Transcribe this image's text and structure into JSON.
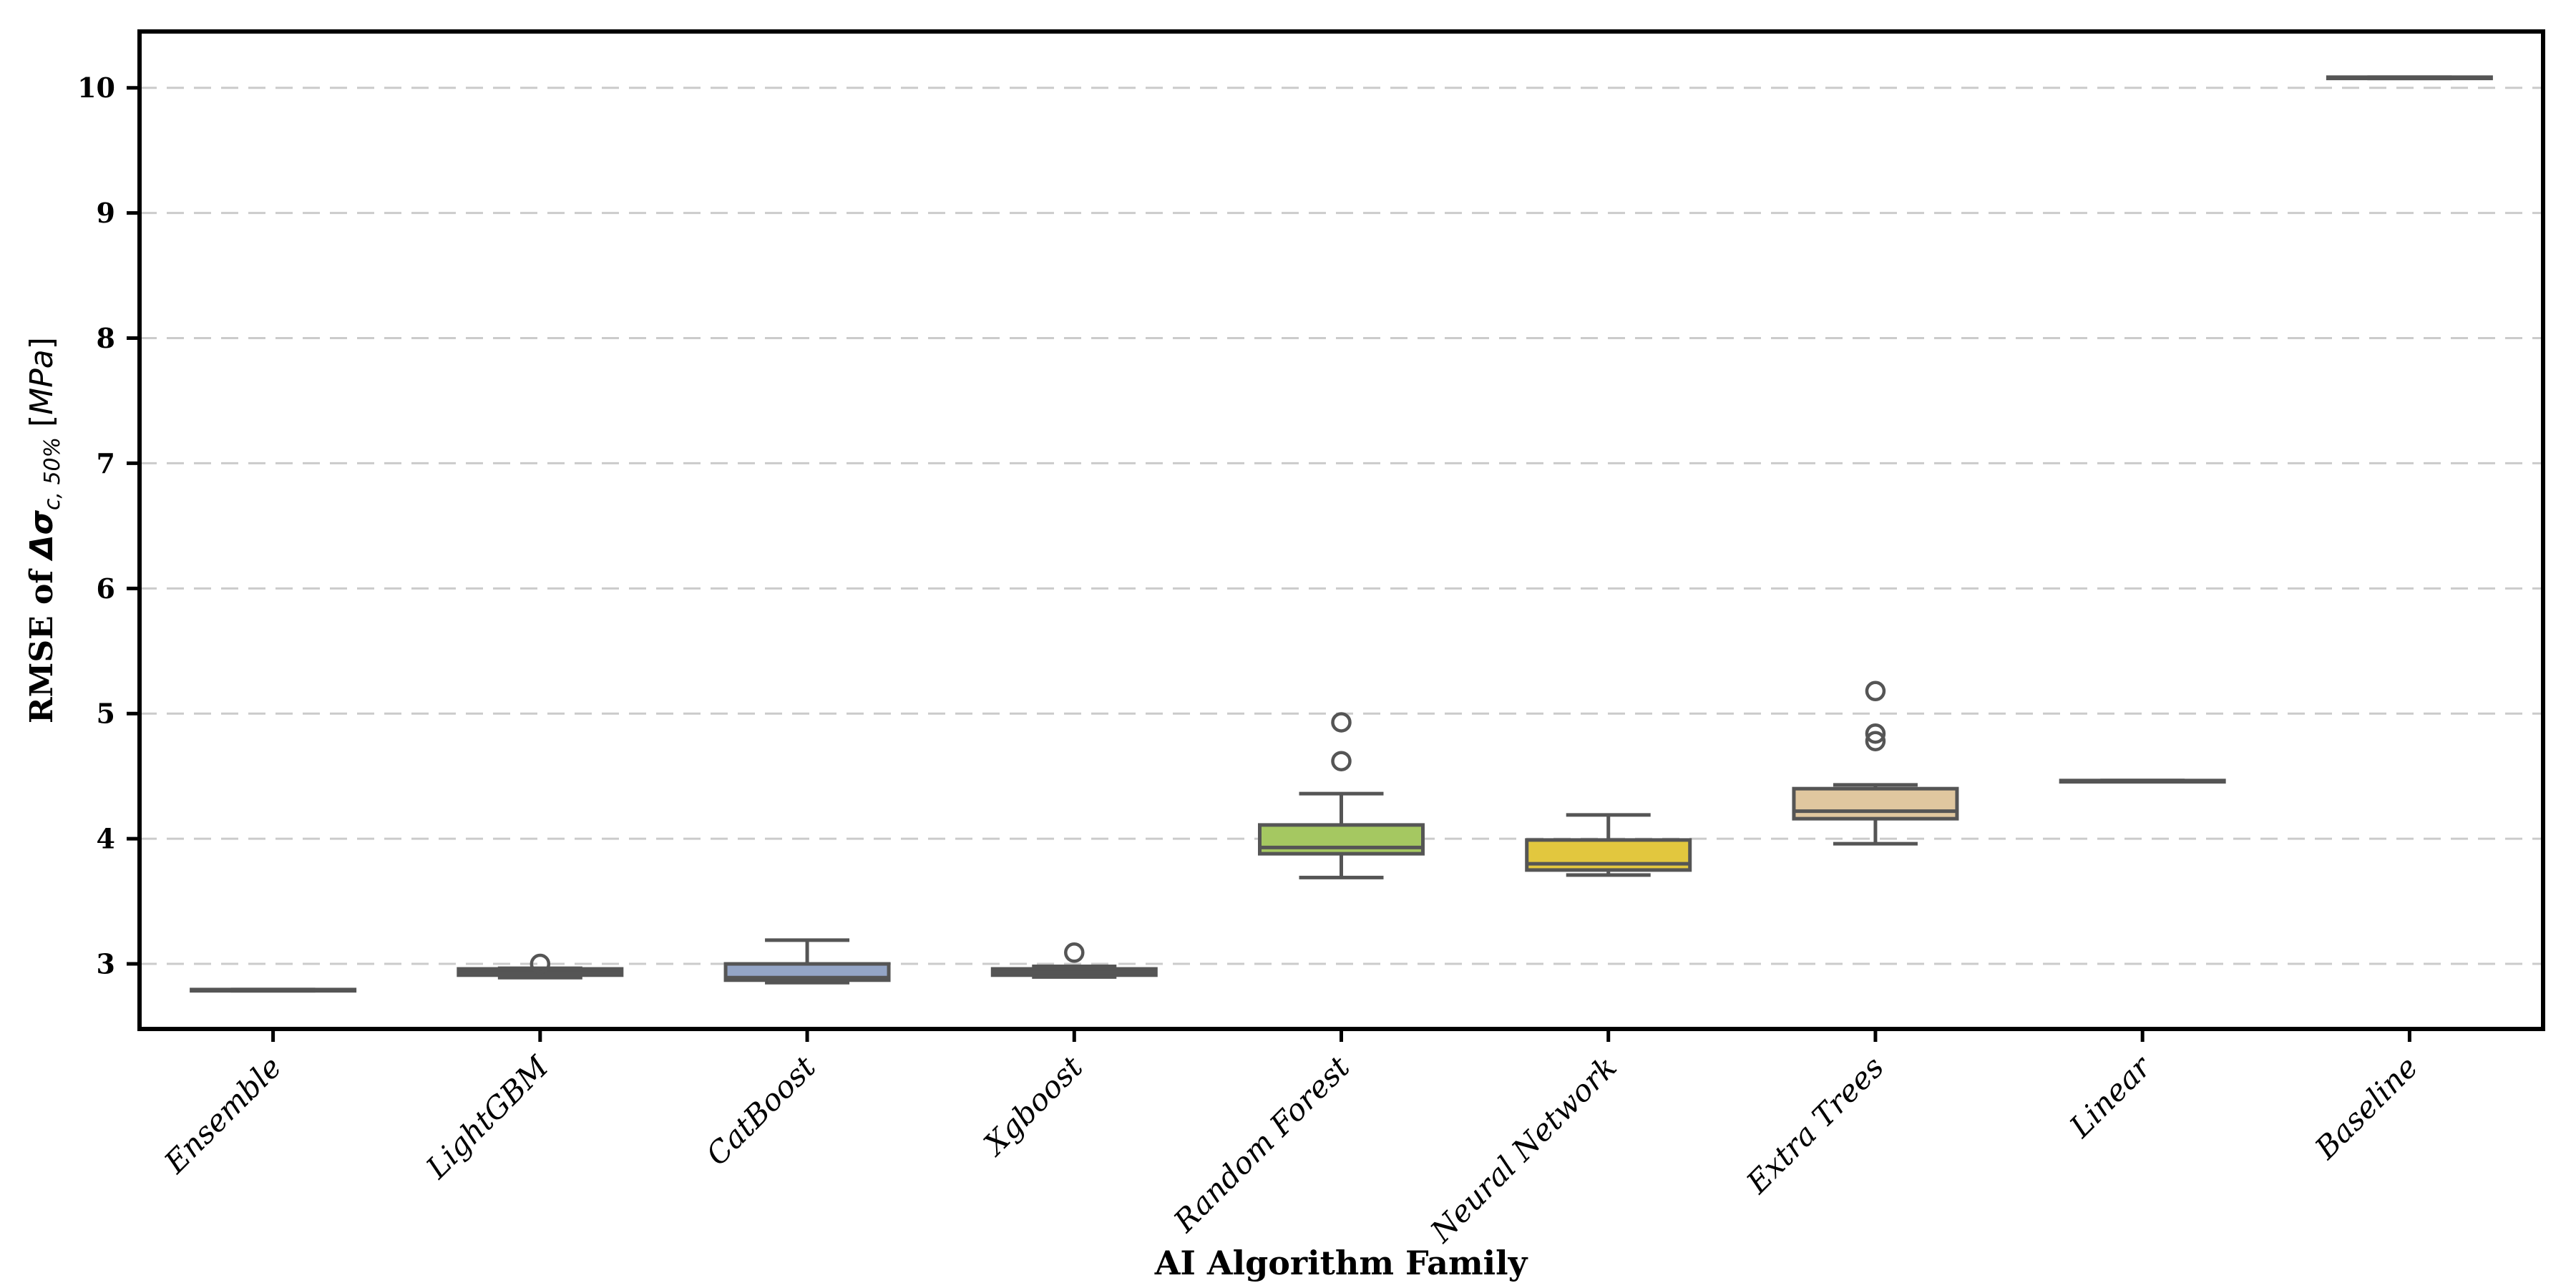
{
  "chart_data": {
    "type": "box",
    "title": "",
    "xlabel": "AI Algorithm Family",
    "ylabel": "RMSE of Δσc,50% [MPa]",
    "ylabel_parts": {
      "prefix": "RMSE of ",
      "symbol": "Δσ",
      "subscript": "c, 50%",
      "open_bracket": " [",
      "unit": "MPa",
      "close_bracket": "]"
    },
    "categories": [
      "Ensemble",
      "LightGBM",
      "CatBoost",
      "Xgboost",
      "Random Forest",
      "Neural Network",
      "Extra Trees",
      "Linear",
      "Baseline"
    ],
    "yticks": [
      3,
      4,
      5,
      6,
      7,
      8,
      9,
      10
    ],
    "ylim": [
      2.48,
      10.45
    ],
    "grid": "horizontal-dashed",
    "legend": "none",
    "series": [
      {
        "name": "Ensemble",
        "whislo": 2.785,
        "q1": 2.785,
        "med": 2.79,
        "q3": 2.795,
        "whishi": 2.795,
        "fliers": [],
        "fill": null
      },
      {
        "name": "LightGBM",
        "whislo": 2.89,
        "q1": 2.91,
        "med": 2.925,
        "q3": 2.96,
        "whishi": 2.965,
        "fliers": [
          3.0
        ],
        "fill": null
      },
      {
        "name": "CatBoost",
        "whislo": 2.85,
        "q1": 2.87,
        "med": 2.89,
        "q3": 3.0,
        "whishi": 3.19,
        "fliers": [],
        "fill": "#94a5c6"
      },
      {
        "name": "Xgboost",
        "whislo": 2.895,
        "q1": 2.91,
        "med": 2.93,
        "q3": 2.96,
        "whishi": 2.98,
        "fliers": [
          3.09
        ],
        "fill": null
      },
      {
        "name": "Random Forest",
        "whislo": 3.69,
        "q1": 3.88,
        "med": 3.93,
        "q3": 4.11,
        "whishi": 4.36,
        "fliers": [
          4.62,
          4.93
        ],
        "fill": "#a5c861"
      },
      {
        "name": "Neural Network",
        "whislo": 3.71,
        "q1": 3.75,
        "med": 3.8,
        "q3": 3.99,
        "whishi": 4.19,
        "fliers": [],
        "fill": "#e2c73e"
      },
      {
        "name": "Extra Trees",
        "whislo": 3.96,
        "q1": 4.16,
        "med": 4.22,
        "q3": 4.4,
        "whishi": 4.43,
        "fliers": [
          4.78,
          4.84,
          5.18
        ],
        "fill": "#e0c79f"
      },
      {
        "name": "Linear",
        "whislo": 4.455,
        "q1": 4.455,
        "med": 4.46,
        "q3": 4.465,
        "whishi": 4.465,
        "fliers": [],
        "fill": null
      },
      {
        "name": "Baseline",
        "whislo": 10.075,
        "q1": 10.075,
        "med": 10.08,
        "q3": 10.085,
        "whishi": 10.085,
        "fliers": [],
        "fill": null
      }
    ],
    "colors": {
      "box_edge": "#555555",
      "whisker": "#555555",
      "median": "#555555",
      "outlier_edge": "#555555",
      "gridline": "#cbcbcb",
      "spine": "#000000",
      "background": "#ffffff"
    }
  }
}
